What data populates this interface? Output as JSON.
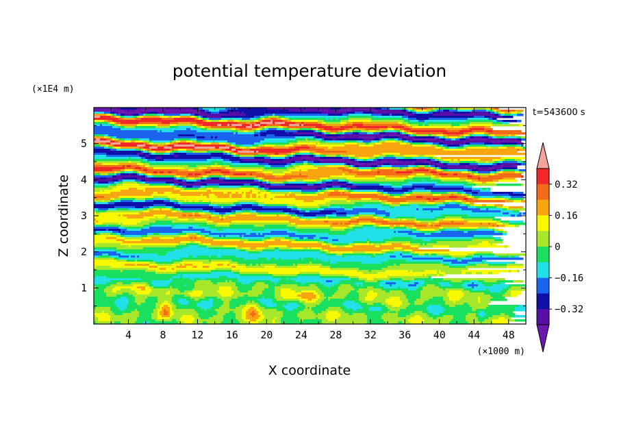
{
  "chart_data": {
    "type": "heatmap",
    "title": "potential temperature deviation",
    "xlabel": "X coordinate",
    "ylabel": "Z coordinate",
    "x_unit": "(×1000 m)",
    "y_unit": "(×1E4 m)",
    "time_label": "t=543600 s",
    "x_ticks": [
      4,
      8,
      12,
      16,
      20,
      24,
      28,
      32,
      36,
      40,
      44,
      48
    ],
    "y_ticks": [
      1,
      2,
      3,
      4,
      5
    ],
    "xlim": [
      0,
      50
    ],
    "ylim": [
      0,
      6
    ],
    "colorbar": {
      "tick_values": [
        0.32,
        0.16,
        0,
        -0.16,
        -0.32
      ],
      "tick_labels": [
        "0.32",
        "0.16",
        "0",
        "−0.16",
        "−0.32"
      ],
      "levels": [
        -0.4,
        -0.32,
        -0.24,
        -0.16,
        -0.08,
        0,
        0.08,
        0.16,
        0.24,
        0.32,
        0.4
      ],
      "colors": [
        "#f3a39b",
        "#f02828",
        "#f46c17",
        "#f8a50f",
        "#f8f800",
        "#a6e62b",
        "#19e05e",
        "#22e0e8",
        "#1b64f0",
        "#1010a8",
        "#5a0ea8",
        "#6a18b0"
      ],
      "extend": "both"
    }
  }
}
